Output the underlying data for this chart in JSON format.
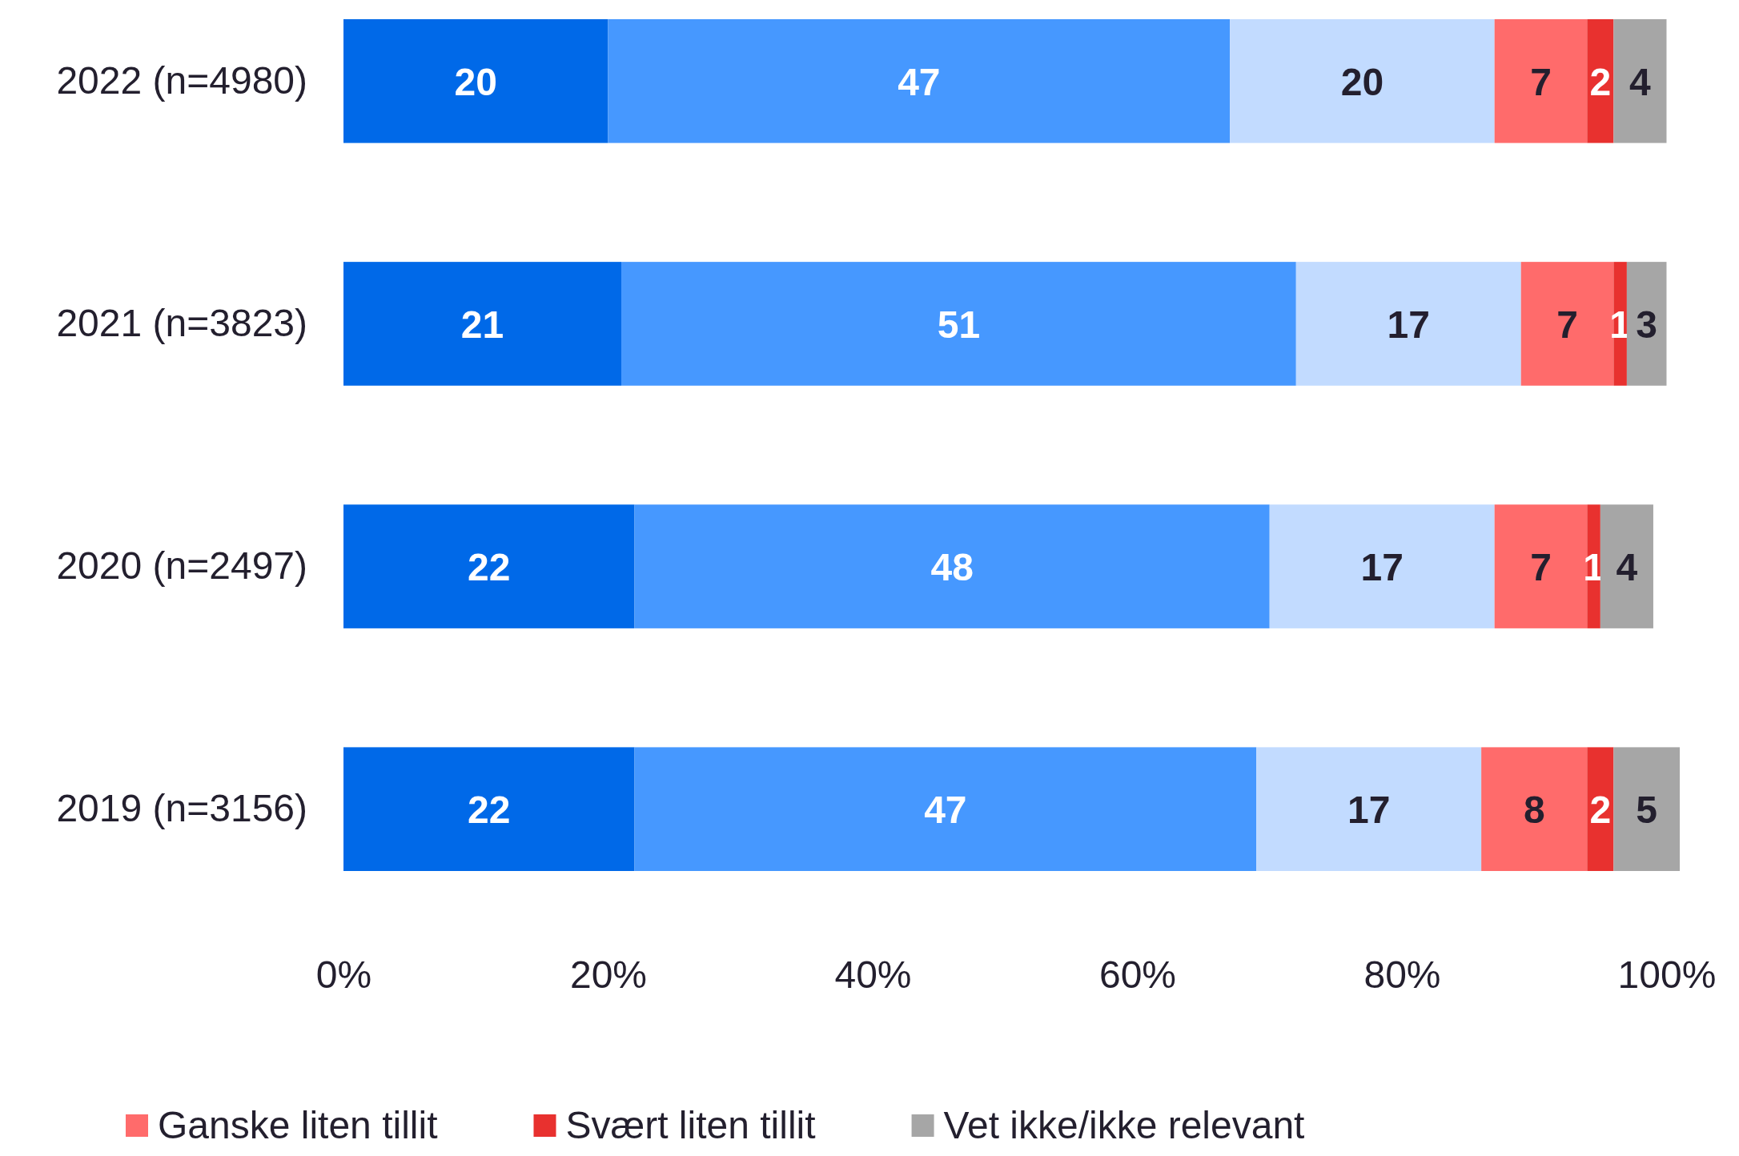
{
  "chart_data": {
    "type": "bar",
    "orientation": "horizontal",
    "stacked": true,
    "categories": [
      "2022 (n=4980)",
      "2021 (n=3823)",
      "2020 (n=2497)",
      "2019 (n=3156)"
    ],
    "series": [
      {
        "color": "#0069e8",
        "values": [
          20,
          21,
          22,
          22
        ]
      },
      {
        "color": "#4698ff",
        "values": [
          47,
          51,
          48,
          47
        ]
      },
      {
        "color": "#c2dbff",
        "values": [
          20,
          17,
          17,
          17
        ]
      },
      {
        "name": "Ganske liten tillit",
        "color": "#ff6b6b",
        "values": [
          7,
          7,
          7,
          8
        ]
      },
      {
        "name": "Svært liten tillit",
        "color": "#e8312f",
        "values": [
          2,
          1,
          1,
          2
        ]
      },
      {
        "name": "Vet ikke/ikke relevant",
        "color": "#a6a6a6",
        "values": [
          4,
          3,
          4,
          5
        ]
      }
    ],
    "xlim": [
      0,
      101
    ],
    "xticks": [
      {
        "value": 0,
        "label": "0%"
      },
      {
        "value": 20,
        "label": "20%"
      },
      {
        "value": 40,
        "label": "40%"
      },
      {
        "value": 60,
        "label": "60%"
      },
      {
        "value": 80,
        "label": "80%"
      },
      {
        "value": 100,
        "label": "100%"
      }
    ],
    "data_labels": true,
    "legend": "bottom",
    "grid": false
  }
}
